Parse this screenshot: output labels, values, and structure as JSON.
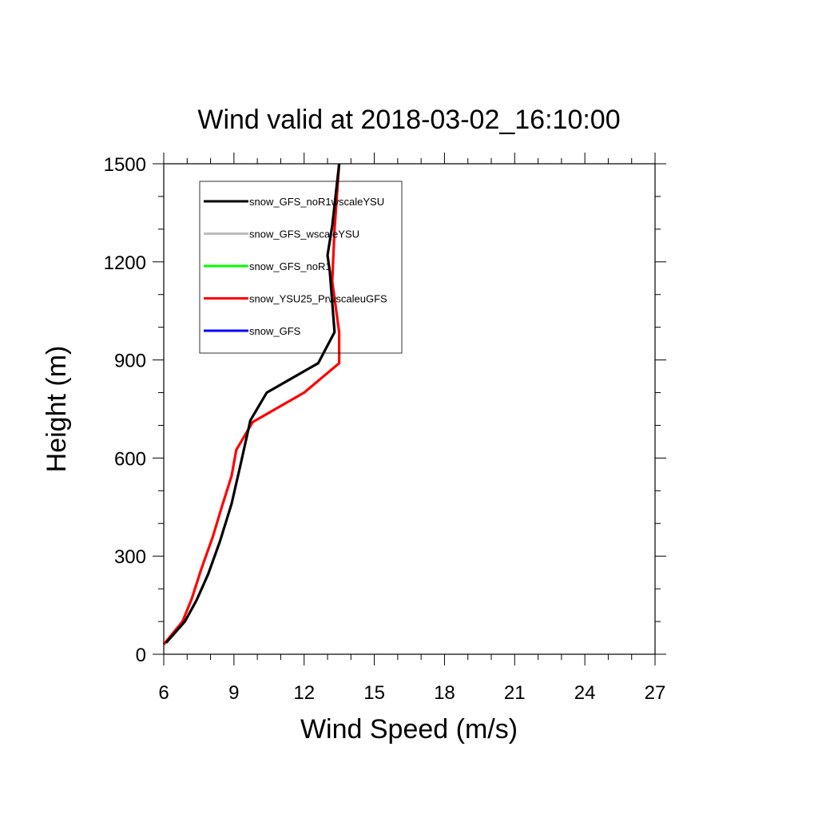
{
  "chart_data": {
    "type": "line",
    "title": "Wind valid at 2018-03-02_16:10:00",
    "xlabel": "Wind Speed (m/s)",
    "ylabel": "Height (m)",
    "xlim": [
      6,
      27
    ],
    "ylim": [
      0,
      1500
    ],
    "xticks": [
      6,
      9,
      12,
      15,
      18,
      21,
      24,
      27
    ],
    "yticks": [
      0,
      300,
      600,
      900,
      1200,
      1500
    ],
    "xtick_labels": [
      "6",
      "9",
      "12",
      "15",
      "18",
      "21",
      "24",
      "27"
    ],
    "ytick_labels": [
      "0",
      "300",
      "600",
      "900",
      "1200",
      "1500"
    ],
    "grid": false,
    "legend_position": "top-left inside plot",
    "series": [
      {
        "name": "snow_GFS_noR1wscaleYSU",
        "color": "#000000",
        "points": [
          [
            6.1,
            35
          ],
          [
            6.9,
            100
          ],
          [
            7.4,
            165
          ],
          [
            7.9,
            245
          ],
          [
            8.4,
            345
          ],
          [
            8.9,
            460
          ],
          [
            9.3,
            585
          ],
          [
            9.7,
            715
          ],
          [
            10.4,
            800
          ],
          [
            12.6,
            890
          ],
          [
            13.3,
            985
          ],
          [
            13.1,
            1170
          ],
          [
            13.0,
            1220
          ],
          [
            13.2,
            1310
          ],
          [
            13.5,
            1500
          ]
        ]
      },
      {
        "name": "snow_GFS_wscaleYSU",
        "color": "#bdbdbd",
        "points": []
      },
      {
        "name": "snow_GFS_noR1",
        "color": "#00ff00",
        "points": []
      },
      {
        "name": "snow_YSU25_PrwscaleuGFS",
        "color": "#ff0000",
        "points": [
          [
            6.0,
            30
          ],
          [
            6.8,
            100
          ],
          [
            7.2,
            170
          ],
          [
            7.6,
            260
          ],
          [
            8.1,
            360
          ],
          [
            8.5,
            455
          ],
          [
            8.9,
            545
          ],
          [
            9.1,
            625
          ],
          [
            9.8,
            710
          ],
          [
            12.0,
            800
          ],
          [
            13.5,
            890
          ],
          [
            13.5,
            985
          ],
          [
            13.2,
            1140
          ],
          [
            13.3,
            1300
          ],
          [
            13.5,
            1500
          ]
        ]
      },
      {
        "name": "snow_GFS",
        "color": "#0000ff",
        "points": []
      }
    ]
  }
}
